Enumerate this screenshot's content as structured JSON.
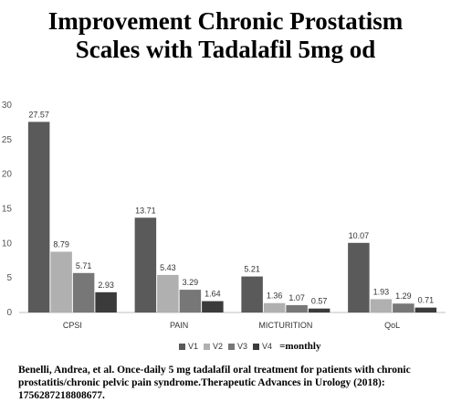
{
  "title_lines": [
    "Improvement Chronic Prostatism",
    "Scales with Tadalafil 5mg od"
  ],
  "legend_note": "=monthly",
  "caption": "Benelli, Andrea, et al. Once-daily 5 mg tadalafil oral treatment for patients with chronic prostatitis/chronic pelvic pain syndrome.Therapeutic Advances in Urology (2018): 1756287218808677.",
  "chart_data": {
    "type": "bar",
    "title": "",
    "xlabel": "",
    "ylabel": "",
    "categories": [
      "CPSI",
      "PAIN",
      "MICTURITION",
      "QoL"
    ],
    "ylim": [
      0,
      30
    ],
    "yticks": [
      0,
      5,
      10,
      15,
      20,
      25,
      30
    ],
    "grid": false,
    "legend_position": "bottom",
    "series": [
      {
        "name": "V1",
        "color": "#5a5a5a",
        "values": [
          27.57,
          13.71,
          5.21,
          10.07
        ],
        "labels": [
          "27.57",
          "13.71",
          "5.21",
          "10.07"
        ]
      },
      {
        "name": "V2",
        "color": "#b0b0b0",
        "values": [
          8.79,
          5.43,
          1.36,
          1.93
        ],
        "labels": [
          "8.79",
          "5.43",
          "1.36",
          "1.93"
        ]
      },
      {
        "name": "V3",
        "color": "#777777",
        "values": [
          5.71,
          3.29,
          1.07,
          1.29
        ],
        "labels": [
          "5.71",
          "3.29",
          "1.07",
          "1.29"
        ]
      },
      {
        "name": "V4",
        "color": "#3b3b3b",
        "values": [
          2.93,
          1.64,
          0.57,
          0.71
        ],
        "labels": [
          "2.93",
          "1.64",
          "0.57",
          "0.71"
        ]
      }
    ]
  }
}
